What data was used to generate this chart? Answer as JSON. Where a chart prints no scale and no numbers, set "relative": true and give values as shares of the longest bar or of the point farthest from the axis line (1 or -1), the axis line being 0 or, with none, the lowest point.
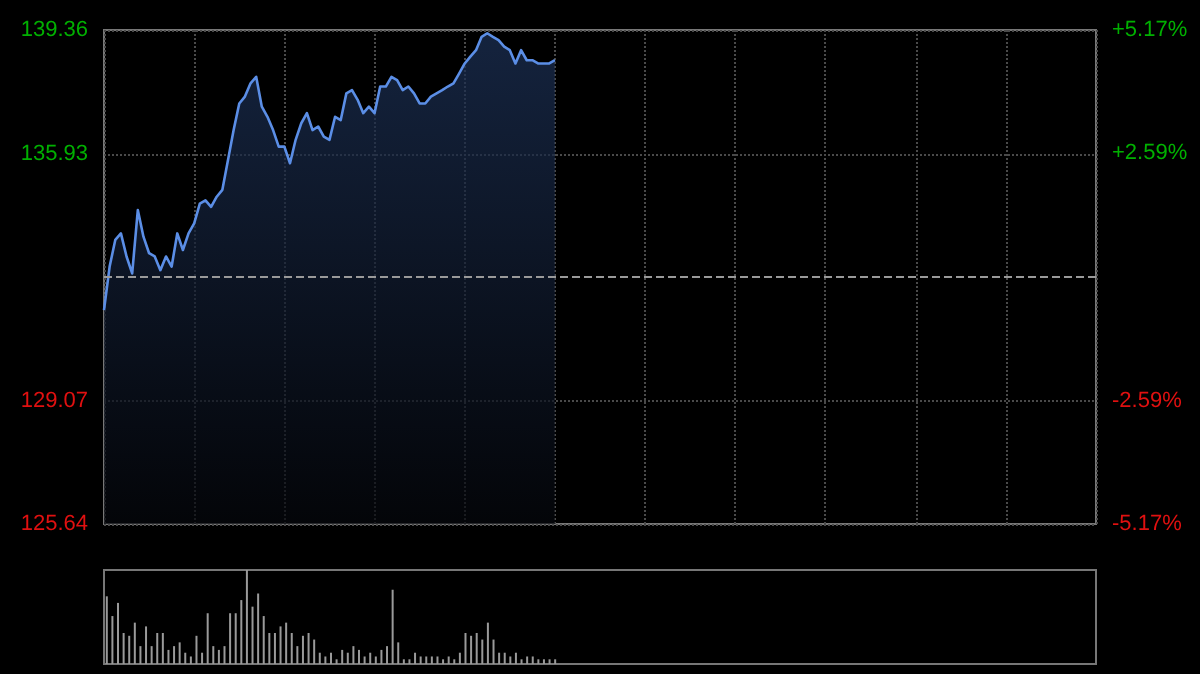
{
  "chart_data": [
    {
      "type": "area",
      "color": "#5b8ee6",
      "tick_labels": "y",
      "grid": true,
      "categories": [
        null,
        null,
        null,
        null,
        null,
        null,
        null,
        null,
        null,
        null,
        null,
        null,
        null,
        null,
        null,
        null,
        null,
        null,
        null,
        null,
        null,
        null,
        null,
        null,
        null,
        null,
        null,
        null,
        null,
        null,
        null,
        null,
        null,
        null,
        null,
        null,
        null,
        null,
        null,
        null,
        null,
        null,
        null,
        null,
        null,
        null,
        null,
        null,
        null,
        null,
        null,
        null,
        null,
        null,
        null,
        null,
        null,
        null,
        null,
        null,
        null,
        null,
        null,
        null,
        null,
        null,
        null,
        null,
        null,
        null,
        null,
        null,
        null,
        null,
        null,
        null,
        null,
        null,
        null,
        null,
        null,
        null,
        null,
        null,
        null,
        null,
        null,
        null,
        null,
        null,
        null,
        null,
        null,
        null,
        null,
        null,
        null,
        null,
        null,
        null,
        null,
        null,
        null,
        null,
        null,
        null,
        null,
        null,
        null,
        null,
        null,
        null,
        null,
        null,
        null,
        null,
        null,
        null,
        null,
        null,
        null,
        null,
        null,
        null,
        null,
        null,
        null,
        null,
        null,
        null,
        null,
        null,
        null,
        null,
        null,
        null,
        null,
        null,
        null,
        null,
        null,
        null,
        null,
        null,
        null,
        null,
        null,
        null,
        null,
        null,
        null,
        null,
        null,
        null,
        null,
        null,
        null,
        null,
        null,
        null,
        null,
        null,
        null,
        null,
        null,
        null,
        null,
        null,
        null,
        null,
        null,
        null,
        null,
        null,
        null,
        null,
        null
      ],
      "values": [
        131.58,
        132.79,
        133.53,
        133.71,
        133.07,
        132.6,
        134.36,
        133.62,
        133.16,
        133.07,
        132.69,
        133.07,
        132.79,
        133.71,
        133.25,
        133.71,
        133.99,
        134.54,
        134.63,
        134.45,
        134.73,
        134.92,
        135.75,
        136.58,
        137.32,
        137.51,
        137.88,
        138.06,
        137.23,
        136.95,
        136.58,
        136.12,
        136.12,
        135.66,
        136.31,
        136.77,
        137.05,
        136.58,
        136.68,
        136.4,
        136.31,
        136.95,
        136.86,
        137.6,
        137.69,
        137.42,
        137.05,
        137.23,
        137.05,
        137.79,
        137.79,
        138.06,
        137.97,
        137.69,
        137.79,
        137.6,
        137.32,
        137.32,
        137.51,
        137.6,
        137.69,
        137.79,
        137.88,
        138.15,
        138.43,
        138.62,
        138.8,
        139.17,
        139.27,
        139.17,
        139.08,
        138.9,
        138.8,
        138.43,
        138.8,
        138.52,
        138.52,
        138.43,
        138.43,
        138.43,
        138.52,
        null,
        null,
        null,
        null,
        null,
        null,
        null,
        null,
        null,
        null,
        null,
        null,
        null,
        null,
        null,
        null,
        null,
        null,
        null,
        null,
        null,
        null,
        null,
        null,
        null,
        null,
        null,
        null,
        null,
        null,
        null,
        null,
        null,
        null,
        null,
        null,
        null,
        null,
        null,
        null,
        null,
        null,
        null,
        null,
        null,
        null,
        null,
        null,
        null,
        null,
        null,
        null,
        null,
        null,
        null,
        null,
        null,
        null,
        null,
        null,
        null,
        null,
        null,
        null,
        null,
        null,
        null,
        null,
        null,
        null,
        null,
        null,
        null,
        null,
        null,
        null,
        null,
        null,
        null,
        null,
        null,
        null,
        null,
        null,
        null,
        null,
        null,
        null,
        null,
        null,
        null,
        null,
        null,
        null,
        null,
        null
      ],
      "ylim": [
        125.64,
        139.36
      ],
      "yticks": [
        125.64,
        129.07,
        135.93,
        139.36
      ],
      "y2lim": [
        -5.17,
        5.17
      ],
      "y2ticks": [
        {
          "value": -5.17,
          "label": "-5.17%"
        },
        {
          "value": -2.59,
          "label": "-2.59%"
        },
        {
          "value": 2.59,
          "label": "+2.59%"
        },
        {
          "value": 5.17,
          "label": "+5.17%"
        }
      ],
      "ref_lines": [
        {
          "axis": "y",
          "value": 132.5,
          "line_style": "dashed"
        }
      ]
    },
    {
      "type": "bar",
      "relative": true,
      "color": "#9a9a9a",
      "tick_labels": false,
      "categories": [
        null,
        null,
        null,
        null,
        null,
        null,
        null,
        null,
        null,
        null,
        null,
        null,
        null,
        null,
        null,
        null,
        null,
        null,
        null,
        null,
        null,
        null,
        null,
        null,
        null,
        null,
        null,
        null,
        null,
        null,
        null,
        null,
        null,
        null,
        null,
        null,
        null,
        null,
        null,
        null,
        null,
        null,
        null,
        null,
        null,
        null,
        null,
        null,
        null,
        null,
        null,
        null,
        null,
        null,
        null,
        null,
        null,
        null,
        null,
        null,
        null,
        null,
        null,
        null,
        null,
        null,
        null,
        null,
        null,
        null,
        null,
        null,
        null,
        null,
        null,
        null,
        null,
        null,
        null,
        null,
        null,
        null,
        null,
        null,
        null,
        null,
        null,
        null,
        null,
        null,
        null,
        null,
        null,
        null,
        null,
        null,
        null,
        null,
        null,
        null,
        null,
        null,
        null,
        null,
        null,
        null,
        null,
        null,
        null,
        null,
        null,
        null,
        null,
        null,
        null,
        null,
        null,
        null,
        null,
        null,
        null,
        null,
        null,
        null,
        null,
        null,
        null,
        null,
        null,
        null,
        null,
        null,
        null,
        null,
        null,
        null,
        null,
        null,
        null,
        null,
        null,
        null,
        null,
        null,
        null,
        null,
        null,
        null,
        null,
        null,
        null,
        null,
        null,
        null,
        null,
        null,
        null,
        null,
        null,
        null,
        null,
        null,
        null,
        null,
        null,
        null,
        null,
        null,
        null,
        null,
        null,
        null,
        null,
        null,
        null,
        null,
        null
      ],
      "values": [
        0.72,
        0.51,
        0.65,
        0.33,
        0.3,
        0.44,
        0.19,
        0.4,
        0.19,
        0.33,
        0.33,
        0.15,
        0.19,
        0.23,
        0.12,
        0.08,
        0.3,
        0.12,
        0.54,
        0.19,
        0.15,
        0.19,
        0.54,
        0.54,
        0.68,
        1,
        0.61,
        0.75,
        0.51,
        0.33,
        0.33,
        0.4,
        0.44,
        0.33,
        0.19,
        0.3,
        0.33,
        0.26,
        0.12,
        0.08,
        0.12,
        0.05,
        0.15,
        0.12,
        0.19,
        0.15,
        0.08,
        0.12,
        0.08,
        0.15,
        0.19,
        0.79,
        0.23,
        0.05,
        0.05,
        0.12,
        0.08,
        0.08,
        0.08,
        0.08,
        0.05,
        0.08,
        0.05,
        0.12,
        0.33,
        0.3,
        0.33,
        0.26,
        0.44,
        0.26,
        0.12,
        0.12,
        0.08,
        0.12,
        0.05,
        0.08,
        0.08,
        0.05,
        0.05,
        0.05,
        0.05,
        null,
        null,
        null,
        null,
        null,
        null,
        null,
        null,
        null,
        null,
        null,
        null,
        null,
        null,
        null,
        null,
        null,
        null,
        null,
        null,
        null,
        null,
        null,
        null,
        null,
        null,
        null,
        null,
        null,
        null,
        null,
        null,
        null,
        null,
        null,
        null,
        null,
        null,
        null,
        null,
        null,
        null,
        null,
        null,
        null,
        null,
        null,
        null,
        null,
        null,
        null,
        null,
        null,
        null,
        null,
        null,
        null,
        null,
        null,
        null,
        null,
        null,
        null,
        null,
        null,
        null,
        null,
        null,
        null,
        null,
        null,
        null,
        null,
        null,
        null,
        null,
        null,
        null,
        null,
        null,
        null,
        null,
        null,
        null,
        null,
        null,
        null,
        null,
        null,
        null,
        null,
        null,
        null,
        null,
        null,
        null
      ]
    }
  ]
}
